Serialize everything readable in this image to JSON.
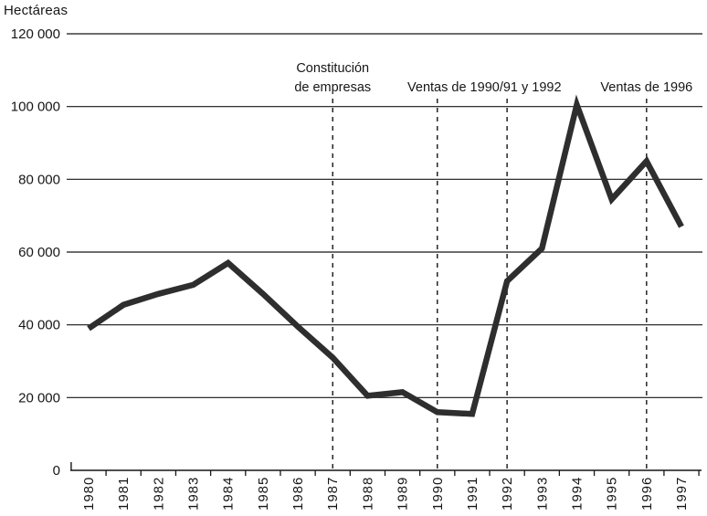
{
  "chart_data": {
    "type": "line",
    "title": "",
    "ylabel": "Hectáreas",
    "xlabel": "",
    "categories": [
      "1980",
      "1981",
      "1982",
      "1983",
      "1984",
      "1985",
      "1986",
      "1987",
      "1988",
      "1989",
      "1990",
      "1991",
      "1992",
      "1993",
      "1994",
      "1995",
      "1996",
      "1997"
    ],
    "values": [
      39000,
      45500,
      48500,
      51000,
      57000,
      48500,
      39500,
      31000,
      20500,
      21500,
      16000,
      15500,
      52000,
      61000,
      100500,
      74500,
      85000,
      67000
    ],
    "ylim": [
      0,
      120000
    ],
    "ytick_values": [
      0,
      20000,
      40000,
      60000,
      80000,
      100000,
      120000
    ],
    "ytick_labels": [
      "0",
      "20 000",
      "40 000",
      "60 000",
      "80 000",
      "100 000",
      "120 000"
    ],
    "grid": "horizontal-solid",
    "legend": "none",
    "line_color": "#2e2e2e",
    "grid_color": "#161616",
    "text_color": "#161616",
    "annotations": [
      {
        "text_lines": [
          "Constitución",
          "de empresas"
        ],
        "center_year": 1987,
        "dashed_line_years": [
          1987
        ]
      },
      {
        "text_lines": [
          "Ventas de 1990/91 y 1992"
        ],
        "center_year": 1991.35,
        "dashed_line_years": [
          1990,
          1992
        ]
      },
      {
        "text_lines": [
          "Ventas de 1996"
        ],
        "center_year": 1996,
        "dashed_line_years": [
          1996
        ]
      }
    ]
  }
}
